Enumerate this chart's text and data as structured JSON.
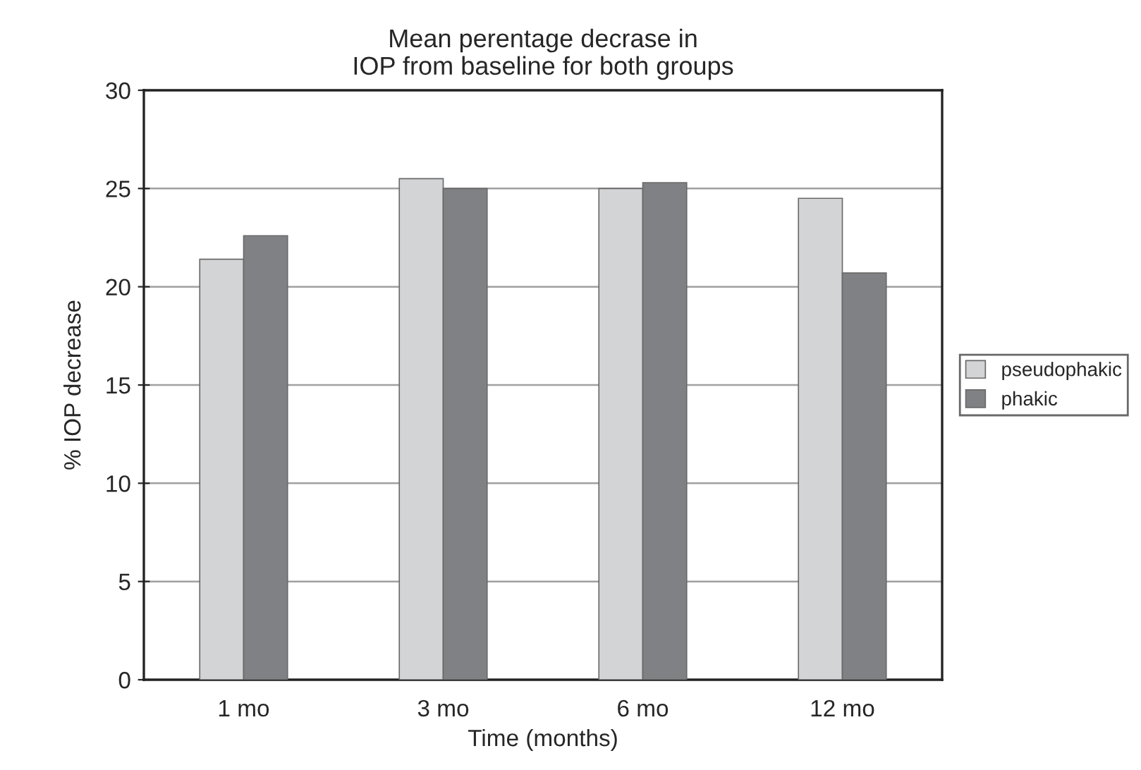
{
  "chart_data": {
    "type": "bar",
    "title": "Mean perentage decrase in\nIOP from baseline for both groups",
    "xlabel": "Time (months)",
    "ylabel": "% IOP decrease",
    "categories": [
      "1 mo",
      "3 mo",
      "6 mo",
      "12 mo"
    ],
    "series": [
      {
        "name": "pseudophakic",
        "color": "#d3d4d6",
        "values": [
          21.4,
          25.5,
          25.0,
          24.5
        ]
      },
      {
        "name": "phakic",
        "color": "#808184",
        "values": [
          22.6,
          25.0,
          25.3,
          20.7
        ]
      }
    ],
    "ylim": [
      0,
      30
    ],
    "yticks": [
      0,
      5,
      10,
      15,
      20,
      25,
      30
    ],
    "grid": "y",
    "legend": "right"
  }
}
